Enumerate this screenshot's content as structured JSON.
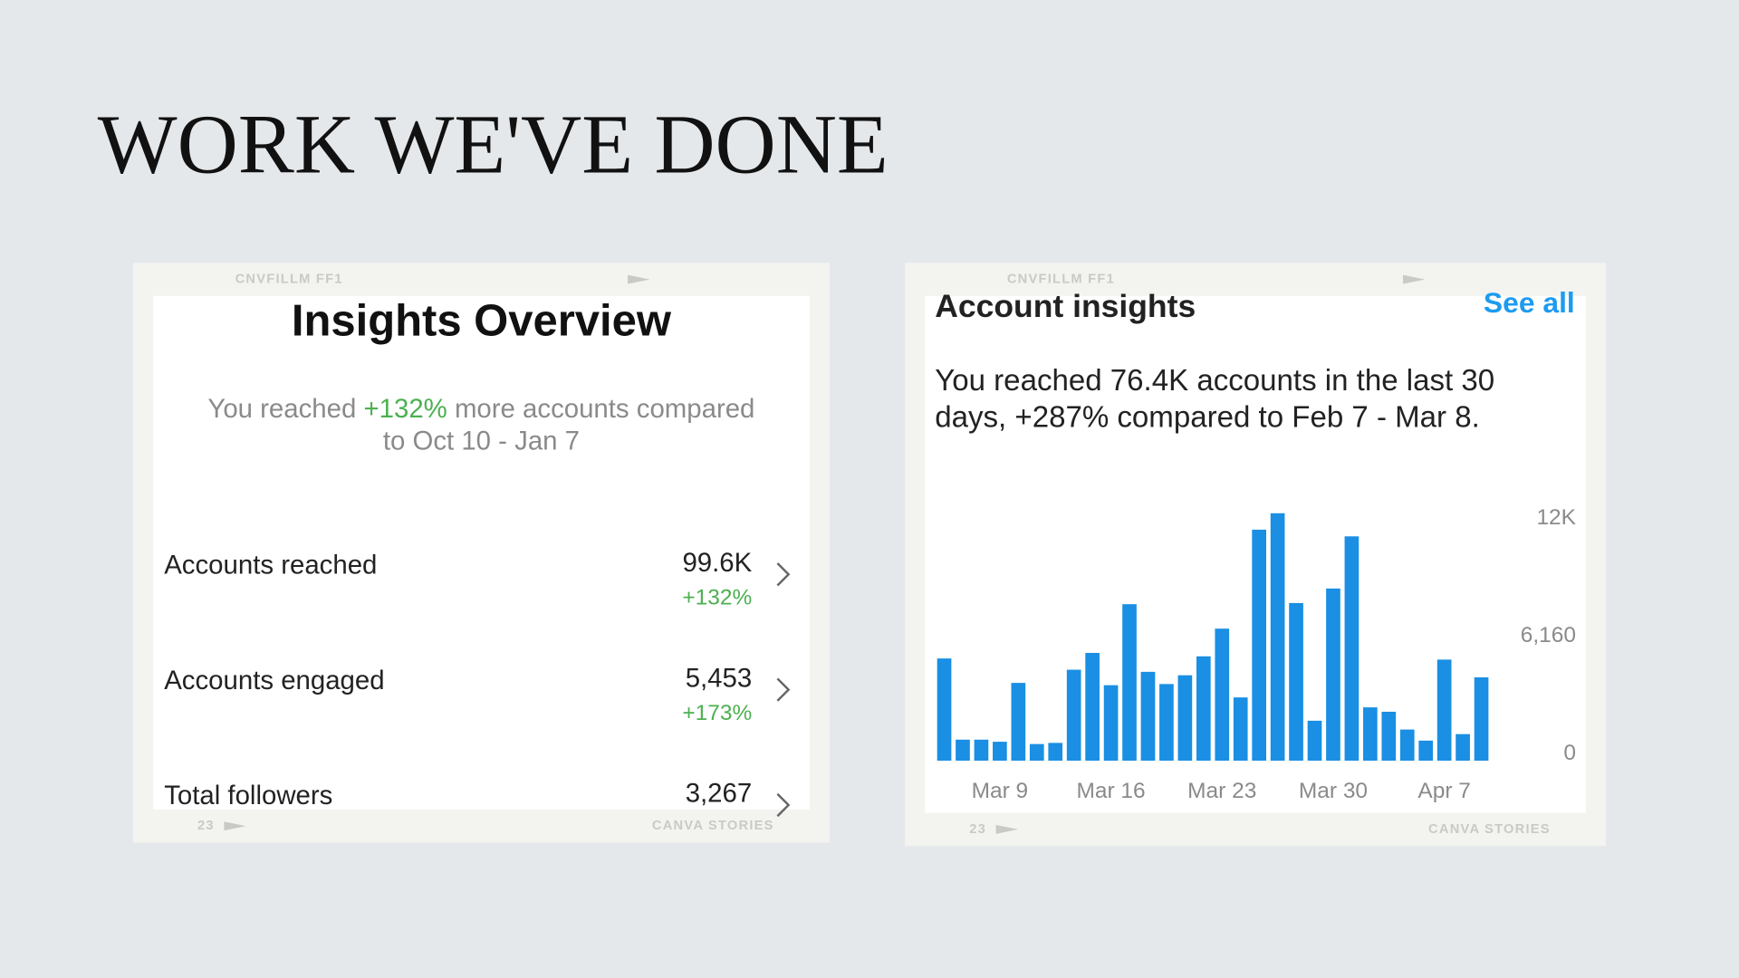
{
  "title": "WORK WE'VE DONE",
  "insights_overview": {
    "frame_top": "CNVFILLM FF1",
    "frame_bottom_left": "23",
    "frame_bottom_right": "CANVA STORIES",
    "heading": "Insights Overview",
    "summary": {
      "line1_before": "You reached",
      "highlight": "+132%",
      "line1_after": "more accounts compared",
      "line2": "to Oct 10 - Jan 7"
    },
    "rows": [
      {
        "label": "Accounts reached",
        "value": "99.6K",
        "change": "+132%"
      },
      {
        "label": "Accounts engaged",
        "value": "5,453",
        "change": "+173%"
      },
      {
        "label": "Total followers",
        "value": "3,267"
      }
    ]
  },
  "account_insights": {
    "frame_top": "CNVFILLM FF1",
    "frame_bottom_left": "23",
    "frame_bottom_right": "CANVA STORIES",
    "heading": "Account insights",
    "link": "See all",
    "summary": [
      "You reached 76.4K accounts in the last 30",
      "days, +287% compared to Feb 7 - Mar 8."
    ]
  },
  "chart_data": {
    "type": "bar",
    "color": "#1a8fe3",
    "categories": [
      null,
      null,
      null,
      "Mar 9",
      null,
      null,
      null,
      null,
      null,
      "Mar 16",
      null,
      null,
      null,
      null,
      null,
      "Mar 23",
      null,
      null,
      null,
      null,
      null,
      "Mar 30",
      null,
      null,
      null,
      null,
      null,
      "Apr 7",
      null,
      null
    ],
    "values": [
      5350,
      1100,
      1100,
      990,
      4070,
      870,
      930,
      4760,
      5640,
      3950,
      8190,
      4650,
      4010,
      4470,
      5460,
      6910,
      3310,
      12090,
      12950,
      8250,
      2090,
      9010,
      11740,
      2790,
      2560,
      1630,
      1050,
      5290,
      1390,
      4360
    ],
    "ylim": [
      0,
      13000
    ],
    "yticks": [
      0,
      {
        "value": 6160,
        "label": "6,160"
      },
      {
        "value": 12320,
        "label": "12K"
      }
    ]
  }
}
